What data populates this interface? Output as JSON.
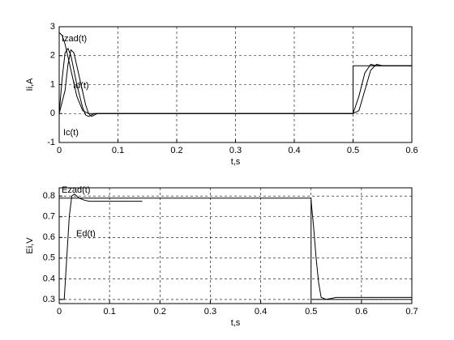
{
  "chart_data": [
    {
      "type": "line",
      "xlabel": "t,s",
      "ylabel": "Ii,A",
      "xlim": [
        0,
        0.6
      ],
      "ylim": [
        -1,
        3
      ],
      "xticks": [
        0,
        0.1,
        0.2,
        0.3,
        0.4,
        0.5,
        0.6
      ],
      "yticks": [
        -1,
        0,
        1,
        2,
        3
      ],
      "grid": true,
      "series": [
        {
          "name": "Izad(t)",
          "color": "#000000",
          "x": [
            0,
            0.005,
            0.01,
            0.02,
            0.03,
            0.04,
            0.05,
            0.5,
            0.5,
            0.6
          ],
          "values": [
            2.8,
            2.7,
            2.4,
            1.5,
            0.6,
            0.1,
            0,
            0,
            1.65,
            1.65
          ]
        },
        {
          "name": "Id(t)",
          "color": "#000000",
          "x": [
            0,
            0.005,
            0.01,
            0.015,
            0.02,
            0.03,
            0.04,
            0.045,
            0.05,
            0.06,
            0.5,
            0.51,
            0.52,
            0.53,
            0.54,
            0.6
          ],
          "values": [
            0,
            1.2,
            2.1,
            2.25,
            2.0,
            1.0,
            0.2,
            -0.05,
            -0.1,
            0,
            0,
            0.6,
            1.4,
            1.7,
            1.65,
            1.65
          ]
        },
        {
          "name": "Ic(t)",
          "color": "#000000",
          "x": [
            0,
            0.01,
            0.015,
            0.02,
            0.025,
            0.035,
            0.045,
            0.05,
            0.055,
            0.065,
            0.5,
            0.51,
            0.52,
            0.53,
            0.54,
            0.55,
            0.6
          ],
          "values": [
            0,
            0.8,
            1.7,
            2.2,
            2.1,
            1.2,
            0.3,
            0,
            -0.1,
            0,
            0,
            0.1,
            0.8,
            1.5,
            1.7,
            1.65,
            1.65
          ]
        }
      ]
    },
    {
      "type": "line",
      "xlabel": "t,s",
      "ylabel": "Ei,V",
      "xlim": [
        0,
        0.7
      ],
      "ylim": [
        0.28,
        0.84
      ],
      "xticks": [
        0,
        0.1,
        0.2,
        0.3,
        0.4,
        0.5,
        0.6,
        0.7
      ],
      "yticks": [
        0.3,
        0.4,
        0.5,
        0.6,
        0.7,
        0.8
      ],
      "grid": true,
      "series": [
        {
          "name": "Ezad(t)",
          "color": "#000000",
          "x": [
            0,
            0.5,
            0.5,
            0.7
          ],
          "values": [
            0.79,
            0.79,
            0.3,
            0.3
          ]
        },
        {
          "name": "Ed(t)",
          "color": "#000000",
          "x": [
            0,
            0.01,
            0.015,
            0.02,
            0.025,
            0.03,
            0.035,
            0.04,
            0.05,
            0.06,
            0.07,
            0.165,
            null,
            0.5,
            0.505,
            0.51,
            0.515,
            0.52,
            0.53,
            0.54,
            0.55,
            0.7
          ],
          "values": [
            0.3,
            0.3,
            0.5,
            0.7,
            0.8,
            0.81,
            0.8,
            0.79,
            0.78,
            0.775,
            0.775,
            0.775,
            null,
            0.78,
            0.65,
            0.5,
            0.38,
            0.31,
            0.3,
            0.305,
            0.31,
            0.31
          ]
        }
      ]
    }
  ]
}
